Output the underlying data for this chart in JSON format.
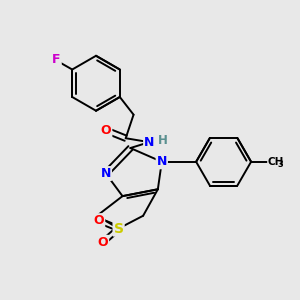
{
  "background_color": "#e8e8e8",
  "bond_color": "#000000",
  "atom_colors": {
    "F": "#cc00cc",
    "O": "#ff0000",
    "N": "#0000ff",
    "S": "#cccc00",
    "H": "#5a9090",
    "C": "#000000"
  },
  "figsize": [
    3.0,
    3.0
  ],
  "dpi": 100,
  "lw": 1.4
}
